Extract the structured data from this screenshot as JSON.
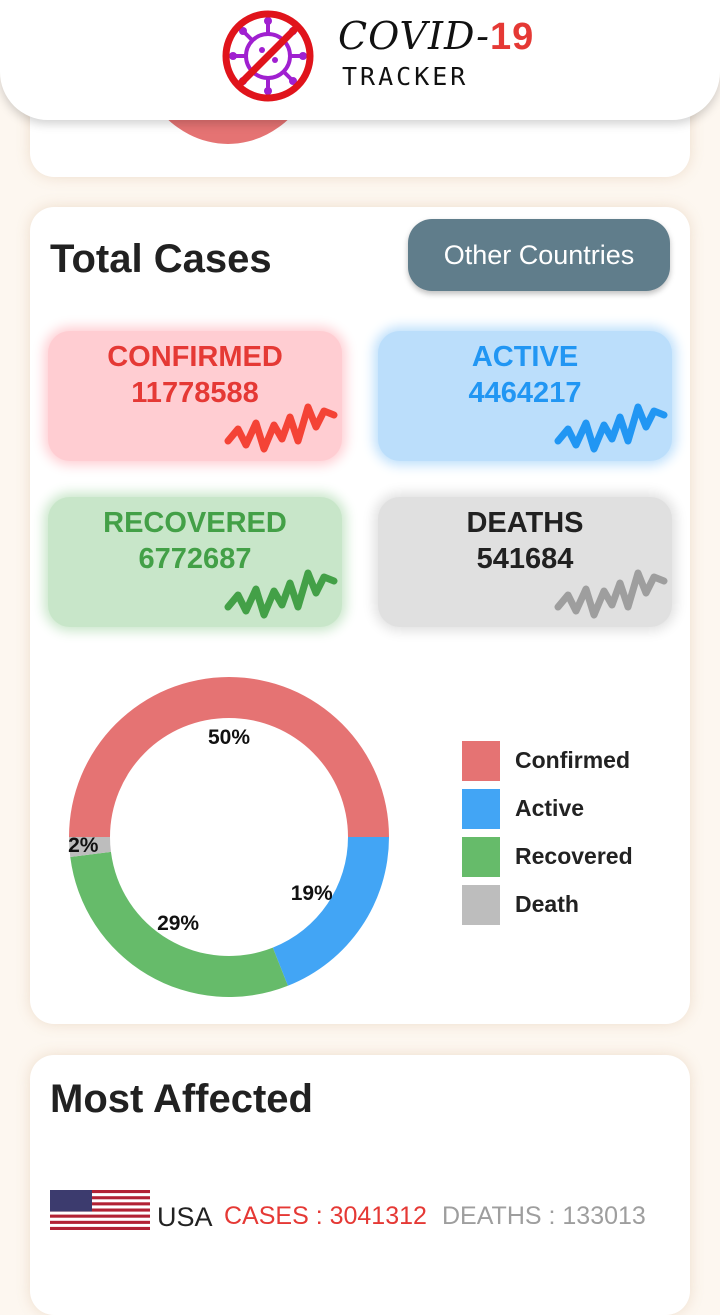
{
  "header": {
    "title_prefix": "COVID-",
    "title_number": "19",
    "subtitle": "TRACKER",
    "logo_icon": "no-virus-icon"
  },
  "total_cases": {
    "title": "Total Cases",
    "other_countries_button": "Other Countries",
    "stats": {
      "confirmed": {
        "label": "CONFIRMED",
        "value": "11778588",
        "color": "#e53935"
      },
      "active": {
        "label": "ACTIVE",
        "value": "4464217",
        "color": "#2196f3"
      },
      "recovered": {
        "label": "RECOVERED",
        "value": "6772687",
        "color": "#43a047"
      },
      "deaths": {
        "label": "DEATHS",
        "value": "541684",
        "color": "#212121"
      }
    }
  },
  "chart_data": {
    "type": "pie",
    "categories": [
      "Confirmed",
      "Active",
      "Recovered",
      "Death"
    ],
    "values": [
      50,
      19,
      29,
      2
    ],
    "value_labels": [
      "50%",
      "19%",
      "29%",
      "2%"
    ],
    "colors": [
      "#e57373",
      "#42a5f5",
      "#66bb6a",
      "#bdbdbd"
    ],
    "legend_position": "right"
  },
  "most_affected": {
    "title": "Most Affected",
    "countries": [
      {
        "name": "USA",
        "cases": "CASES : 3041312",
        "deaths": "DEATHS : 133013"
      }
    ]
  }
}
